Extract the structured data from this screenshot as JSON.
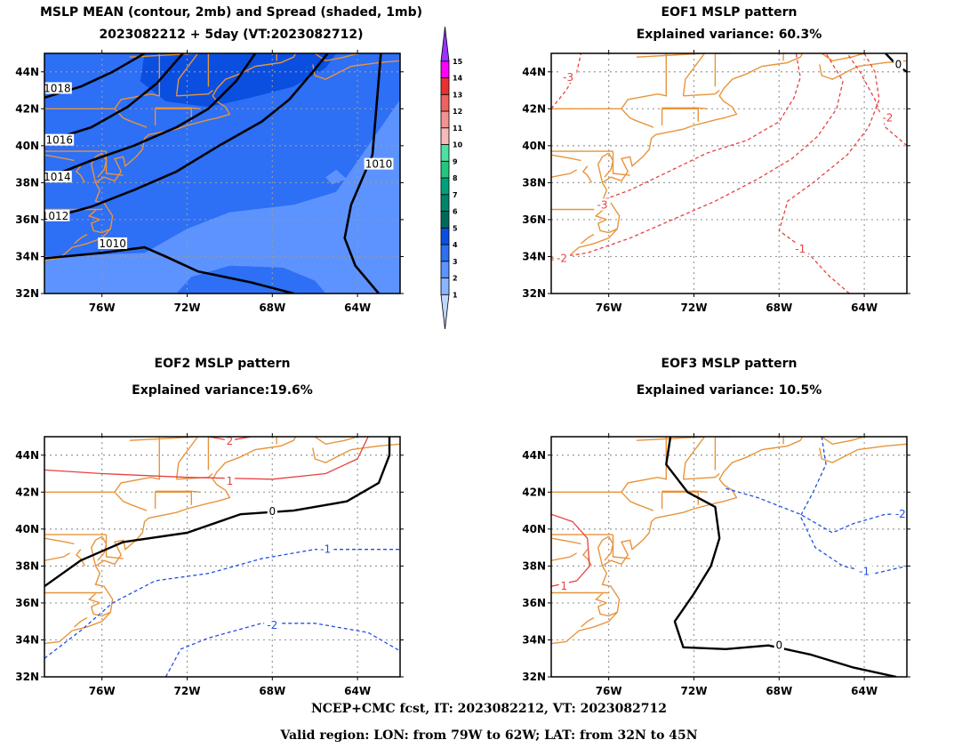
{
  "colors": {
    "coast": "#E8943A",
    "grid": "#999999",
    "positive": "#E84040",
    "negative": "#2050E0",
    "zero": "#000000"
  },
  "footer": {
    "line1": "NCEP+CMC fcst, IT: 2023082212, VT: 2023082712",
    "line2": "Valid region: LON: from 79W to 62W; LAT: from 32N to 45N"
  },
  "chart_data": [
    {
      "type": "heatmap",
      "title": "MSLP MEAN (contour, 2mb) and Spread (shaded, 1mb)",
      "subtitle": "2023082212 + 5day (VT:2023082712)",
      "x_ticks": [
        "76W",
        "72W",
        "68W",
        "64W"
      ],
      "y_ticks": [
        "44N",
        "42N",
        "40N",
        "38N",
        "36N",
        "34N",
        "32N"
      ],
      "xlim": [
        -78.7,
        -62.0
      ],
      "ylim": [
        32,
        45
      ],
      "colorbar": {
        "levels": [
          "1",
          "2",
          "3",
          "4",
          "5",
          "6",
          "7",
          "8",
          "9",
          "10",
          "11",
          "12",
          "13",
          "14",
          "15"
        ],
        "colors": [
          "#BFD7FF",
          "#8CB4FF",
          "#5C93FF",
          "#2D6FF5",
          "#0A4FE0",
          "#00695C",
          "#00856A",
          "#00A27A",
          "#22C77E",
          "#4EE0A0",
          "#F7B9B9",
          "#F49292",
          "#EF6262",
          "#E83232",
          "#FF00FF",
          "#9A33FF"
        ]
      },
      "spread_fields": [
        {
          "level": 2,
          "points": [
            [
              -78.7,
              32
            ],
            [
              -62,
              32
            ],
            [
              -62,
              45
            ],
            [
              -78.7,
              45
            ]
          ]
        },
        {
          "level": 3,
          "points": [
            [
              -78.7,
              34
            ],
            [
              -74,
              34.2
            ],
            [
              -72,
              35.5
            ],
            [
              -70,
              36.4
            ],
            [
              -67,
              36.8
            ],
            [
              -65,
              37.5
            ],
            [
              -63.5,
              40
            ],
            [
              -62,
              42.5
            ],
            [
              -62,
              45
            ],
            [
              -78.7,
              45
            ]
          ]
        },
        {
          "level": 3,
          "points": [
            [
              -72.5,
              32
            ],
            [
              -71.8,
              32.9
            ],
            [
              -70,
              33.5
            ],
            [
              -67.5,
              33.4
            ],
            [
              -66,
              32.7
            ],
            [
              -65.5,
              32
            ]
          ]
        },
        {
          "level": 4,
          "points": [
            [
              -74,
              45
            ],
            [
              -74.2,
              43.5
            ],
            [
              -73,
              42.4
            ],
            [
              -71,
              42.1
            ],
            [
              -69,
              42.6
            ],
            [
              -67,
              43.2
            ],
            [
              -65.5,
              44.2
            ],
            [
              -65,
              45
            ]
          ]
        },
        {
          "level": 2,
          "points": [
            [
              -65.5,
              38.3
            ],
            [
              -65,
              38.7
            ],
            [
              -64.5,
              38.2
            ],
            [
              -65.2,
              37.9
            ]
          ]
        }
      ],
      "contours": [
        {
          "label": "1010",
          "points": [
            [
              -78.7,
              33.9
            ],
            [
              -76,
              34.2
            ],
            [
              -74,
              34.5
            ],
            [
              -73,
              34
            ],
            [
              -71.5,
              33.2
            ],
            [
              -69,
              32.6
            ],
            [
              -67,
              32
            ]
          ],
          "label_at": [
            -75.5,
            34.7
          ]
        },
        {
          "label": "1010",
          "points": [
            [
              -62.9,
              45.0
            ],
            [
              -63.3,
              39.5
            ],
            [
              -64.3,
              36.8
            ],
            [
              -64.6,
              35.0
            ],
            [
              -64.1,
              33.5
            ],
            [
              -63.0,
              32.0
            ]
          ],
          "label_at": [
            -63.0,
            39.0
          ]
        },
        {
          "label": "1012",
          "points": [
            [
              -78.7,
              36.0
            ],
            [
              -76.5,
              36.7
            ],
            [
              -74.5,
              37.6
            ],
            [
              -72.5,
              38.6
            ],
            [
              -70.5,
              40.0
            ],
            [
              -68.5,
              41.3
            ],
            [
              -67.2,
              42.5
            ],
            [
              -66.1,
              44.0
            ],
            [
              -65.4,
              45.0
            ]
          ],
          "label_at": [
            -78.2,
            36.2
          ]
        },
        {
          "label": "1014",
          "points": [
            [
              -78.7,
              38.2
            ],
            [
              -76.5,
              39.2
            ],
            [
              -74.5,
              40.0
            ],
            [
              -72.5,
              41.0
            ],
            [
              -71,
              42.0
            ],
            [
              -69.7,
              43.5
            ],
            [
              -68.8,
              45.0
            ]
          ],
          "label_at": [
            -78.1,
            38.3
          ]
        },
        {
          "label": "1016",
          "points": [
            [
              -78.7,
              40.2
            ],
            [
              -76.5,
              41.0
            ],
            [
              -74.8,
              42.1
            ],
            [
              -73.4,
              43.4
            ],
            [
              -72.2,
              45.0
            ]
          ],
          "label_at": [
            -78.0,
            40.3
          ]
        },
        {
          "label": "1018",
          "points": [
            [
              -78.7,
              42.6
            ],
            [
              -77,
              43.2
            ],
            [
              -75.5,
              44.0
            ],
            [
              -74,
              45.0
            ]
          ],
          "label_at": [
            -78.1,
            43.1
          ]
        }
      ]
    },
    {
      "type": "line",
      "title": "EOF1 MSLP pattern",
      "subtitle": "Explained variance: 60.3%",
      "x_ticks": [
        "76W",
        "72W",
        "68W",
        "64W"
      ],
      "y_ticks": [
        "44N",
        "42N",
        "40N",
        "38N",
        "36N",
        "34N",
        "32N"
      ],
      "contours": [
        {
          "label": "-2",
          "color": "#E84040",
          "points": [
            [
              -78.7,
              33.9
            ],
            [
              -77,
              34.2
            ],
            [
              -75,
              35.0
            ],
            [
              -73,
              36.0
            ],
            [
              -71,
              37.0
            ],
            [
              -69,
              38.2
            ],
            [
              -67.4,
              39.3
            ],
            [
              -66.2,
              40.5
            ],
            [
              -65.3,
              42.0
            ],
            [
              -65.0,
              43.5
            ],
            [
              -65.8,
              45.0
            ]
          ],
          "label_at": [
            -78.2,
            33.9
          ]
        },
        {
          "label": "-3",
          "color": "#E84040",
          "points": [
            [
              -76.2,
              37.1
            ],
            [
              -75,
              37.6
            ],
            [
              -73,
              38.7
            ],
            [
              -71.4,
              39.6
            ],
            [
              -69.5,
              40.3
            ],
            [
              -68,
              41.3
            ],
            [
              -67.3,
              42.6
            ],
            [
              -67.0,
              43.7
            ],
            [
              -67.2,
              45.0
            ]
          ],
          "label_at": [
            -76.3,
            36.8
          ]
        },
        {
          "label": "-3",
          "color": "#E84040",
          "points": [
            [
              -78.7,
              42.0
            ],
            [
              -78.0,
              43.0
            ],
            [
              -77.5,
              44.0
            ],
            [
              -77.3,
              45.0
            ]
          ],
          "label_at": [
            -77.9,
            43.7
          ]
        },
        {
          "label": "-2",
          "color": "#E84040",
          "points": [
            [
              -62.0,
              40.0
            ],
            [
              -63.0,
              41.0
            ],
            [
              -63.5,
              42.5
            ],
            [
              -64.2,
              44.0
            ],
            [
              -64.8,
              45.0
            ]
          ],
          "label_at": [
            -62.9,
            41.5
          ]
        },
        {
          "label": "-1",
          "color": "#E84040",
          "points": [
            [
              -64.7,
              32.0
            ],
            [
              -65.7,
              33.0
            ],
            [
              -66.8,
              34.4
            ],
            [
              -68,
              35.4
            ],
            [
              -67.6,
              37.0
            ],
            [
              -66.4,
              38.0
            ],
            [
              -64.8,
              39.5
            ],
            [
              -63.8,
              41.0
            ],
            [
              -63.3,
              42.5
            ],
            [
              -63.5,
              44.0
            ],
            [
              -64.0,
              45.0
            ]
          ],
          "label_at": [
            -67.0,
            34.4
          ]
        },
        {
          "label": "0",
          "color": "#000000",
          "points": [
            [
              -63.0,
              45.0
            ],
            [
              -62.5,
              44.4
            ],
            [
              -62.0,
              44.0
            ]
          ],
          "label_at": [
            -62.4,
            44.4
          ]
        }
      ]
    },
    {
      "type": "line",
      "title": "EOF2 MSLP pattern",
      "subtitle": "Explained variance:19.6%",
      "x_ticks": [
        "76W",
        "72W",
        "68W",
        "64W"
      ],
      "y_ticks": [
        "44N",
        "42N",
        "40N",
        "38N",
        "36N",
        "34N",
        "32N"
      ],
      "contours": [
        {
          "label": "1",
          "color": "#E84040",
          "points": [
            [
              -78.7,
              43.2
            ],
            [
              -76,
              43.0
            ],
            [
              -72,
              42.8
            ],
            [
              -68,
              42.7
            ],
            [
              -65.5,
              43.0
            ],
            [
              -64,
              43.8
            ],
            [
              -63.5,
              45.0
            ]
          ],
          "label_at": [
            -70.0,
            42.6
          ]
        },
        {
          "label": "2",
          "color": "#E84040",
          "points": [
            [
              -71.0,
              45.0
            ],
            [
              -70.0,
              44.8
            ],
            [
              -69.0,
              45.0
            ]
          ],
          "label_at": [
            -70.0,
            44.75
          ]
        },
        {
          "label": "0",
          "color": "#000000",
          "points": [
            [
              -78.7,
              36.9
            ],
            [
              -77,
              38.3
            ],
            [
              -75,
              39.3
            ],
            [
              -72,
              39.8
            ],
            [
              -69.5,
              40.8
            ],
            [
              -67,
              41.0
            ],
            [
              -64.5,
              41.5
            ],
            [
              -63,
              42.5
            ],
            [
              -62.5,
              44.0
            ],
            [
              -62.5,
              45.0
            ]
          ],
          "label_at": [
            -68.0,
            40.95
          ]
        },
        {
          "label": "-1",
          "color": "#2050E0",
          "points": [
            [
              -78.7,
              33.0
            ],
            [
              -77,
              34.5
            ],
            [
              -75.5,
              36.0
            ],
            [
              -73.5,
              37.2
            ],
            [
              -71,
              37.6
            ],
            [
              -68.5,
              38.4
            ],
            [
              -66,
              38.9
            ],
            [
              -64,
              38.9
            ],
            [
              -62,
              38.9
            ]
          ],
          "label_at": [
            -65.5,
            38.9
          ]
        },
        {
          "label": "-2",
          "color": "#2050E0",
          "points": [
            [
              -73.0,
              32.0
            ],
            [
              -72.3,
              33.5
            ],
            [
              -71,
              34.1
            ],
            [
              -68.5,
              34.9
            ],
            [
              -66,
              34.9
            ],
            [
              -63.5,
              34.4
            ],
            [
              -62,
              33.4
            ]
          ],
          "label_at": [
            -68.0,
            34.8
          ]
        }
      ]
    },
    {
      "type": "line",
      "title": "EOF3 MSLP pattern",
      "subtitle": "Explained variance: 10.5%",
      "x_ticks": [
        "76W",
        "72W",
        "68W",
        "64W"
      ],
      "y_ticks": [
        "44N",
        "42N",
        "40N",
        "38N",
        "36N",
        "34N",
        "32N"
      ],
      "contours": [
        {
          "label": "0",
          "color": "#000000",
          "points": [
            [
              -73.1,
              45.0
            ],
            [
              -73.3,
              43.5
            ],
            [
              -72.3,
              42.0
            ],
            [
              -71.0,
              41.2
            ],
            [
              -70.8,
              39.5
            ],
            [
              -71.2,
              38.0
            ],
            [
              -72.0,
              36.5
            ],
            [
              -72.9,
              35.0
            ],
            [
              -72.5,
              33.6
            ],
            [
              -70.5,
              33.5
            ],
            [
              -68.5,
              33.7
            ],
            [
              -66.5,
              33.2
            ],
            [
              -64.5,
              32.5
            ],
            [
              -62.5,
              32.0
            ]
          ],
          "label_at": [
            -68.0,
            33.7
          ]
        },
        {
          "label": "-1",
          "color": "#2050E0",
          "points": [
            [
              -66.0,
              45.0
            ],
            [
              -65.8,
              43.5
            ],
            [
              -66.4,
              42.0
            ],
            [
              -67.0,
              40.7
            ],
            [
              -66.3,
              39.0
            ],
            [
              -65.0,
              38.0
            ],
            [
              -63.5,
              37.6
            ],
            [
              -62.0,
              38.0
            ]
          ],
          "label_at": [
            -64.0,
            37.7
          ]
        },
        {
          "label": "-2",
          "color": "#2050E0",
          "points": [
            [
              -70.5,
              42.2
            ],
            [
              -69,
              41.7
            ],
            [
              -67,
              40.8
            ],
            [
              -65.5,
              39.8
            ],
            [
              -64.5,
              40.3
            ],
            [
              -63.0,
              40.8
            ],
            [
              -62.0,
              40.8
            ]
          ],
          "label_at": [
            -62.3,
            40.8
          ]
        },
        {
          "label": "1",
          "color": "#E84040",
          "points": [
            [
              -78.7,
              40.8
            ],
            [
              -77.7,
              40.4
            ],
            [
              -77.0,
              39.5
            ],
            [
              -76.9,
              38.0
            ],
            [
              -77.5,
              37.2
            ],
            [
              -78.7,
              36.9
            ]
          ],
          "label_at": [
            -78.1,
            36.9
          ]
        }
      ]
    }
  ]
}
